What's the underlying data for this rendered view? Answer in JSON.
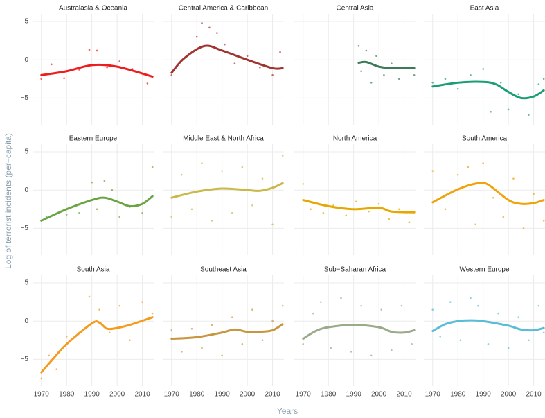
{
  "y_label": "Log of terrorist incidents (per−capita)",
  "x_label": "Years",
  "chart_data": [
    {
      "type": "scatter",
      "title": "Australasia & Oceania",
      "color": "#ee1c1c",
      "xlim": [
        1966.5,
        2014.5
      ],
      "ylim": [
        -8.5,
        6
      ],
      "xticks": [
        1970,
        1980,
        1990,
        2000,
        2010
      ],
      "yticks": [
        5,
        0,
        {
          "value": -5,
          "label": "−5"
        }
      ],
      "grid": true,
      "x": [
        1970,
        1974,
        1979,
        1985,
        1989,
        1992,
        1996,
        2001,
        2006,
        2012
      ],
      "y": [
        -2.5,
        -0.6,
        -2.4,
        -1.3,
        1.3,
        1.2,
        -1.0,
        -0.2,
        -1.2,
        -3.1
      ],
      "smooth_x": [
        1970,
        1980,
        1990,
        2000,
        2014
      ],
      "smooth_values": [
        -2,
        -1.5,
        -0.7,
        -0.9,
        -2.2
      ]
    },
    {
      "type": "scatter",
      "title": "Central America & Caribbean",
      "color": "#a0342f",
      "xlim": [
        1966.5,
        2014.5
      ],
      "ylim": [
        -8.5,
        6
      ],
      "xticks": [
        1970,
        1980,
        1990,
        2000,
        2010
      ],
      "yticks": [
        5,
        0,
        {
          "value": -5,
          "label": "−5"
        }
      ],
      "grid": true,
      "x": [
        1970,
        1976,
        1980,
        1982,
        1985,
        1988,
        1991,
        1995,
        2000,
        2005,
        2010,
        2013
      ],
      "y": [
        -2.0,
        0.5,
        3.0,
        4.8,
        4.2,
        3.5,
        2.0,
        -0.5,
        0.5,
        -1.0,
        -2.0,
        1.0
      ],
      "smooth_x": [
        1970,
        1975,
        1983,
        1990,
        2000,
        2010,
        2014
      ],
      "smooth_values": [
        -1.7,
        0.2,
        1.8,
        1.2,
        0,
        -1.1,
        -1.1
      ]
    },
    {
      "type": "scatter",
      "title": "Central Asia",
      "color": "#3d7a5a",
      "xlim": [
        1966.5,
        2014.5
      ],
      "ylim": [
        -8.5,
        6
      ],
      "xticks": [
        1970,
        1980,
        1990,
        2000,
        2010
      ],
      "yticks": [
        5,
        0,
        {
          "value": -5,
          "label": "−5"
        }
      ],
      "grid": true,
      "x": [
        1992,
        1993,
        1995,
        1997,
        1999,
        2002,
        2005,
        2008,
        2011,
        2014
      ],
      "y": [
        1.8,
        -1.5,
        1.2,
        -3.0,
        0.5,
        -2.0,
        -0.5,
        -2.5,
        -1.0,
        -2.0
      ],
      "smooth_x": [
        1992,
        1995,
        2000,
        2005,
        2014
      ],
      "smooth_values": [
        -0.4,
        -0.3,
        -0.9,
        -1.1,
        -1.1
      ]
    },
    {
      "type": "scatter",
      "title": "East Asia",
      "color": "#1b9e77",
      "xlim": [
        1966.5,
        2014.5
      ],
      "ylim": [
        -8.5,
        6
      ],
      "xticks": [
        1970,
        1980,
        1990,
        2000,
        2010
      ],
      "yticks": [
        5,
        0,
        {
          "value": -5,
          "label": "−5"
        }
      ],
      "grid": true,
      "x": [
        1970,
        1975,
        1980,
        1985,
        1990,
        1993,
        1997,
        2000,
        2004,
        2008,
        2012,
        2014
      ],
      "y": [
        -3.0,
        -2.5,
        -3.8,
        -2.0,
        -1.2,
        -6.8,
        -3.0,
        -6.5,
        -4.5,
        -7.2,
        -3.2,
        -2.5
      ],
      "smooth_x": [
        1970,
        1980,
        1990,
        1995,
        2000,
        2005,
        2010,
        2014
      ],
      "smooth_values": [
        -3.5,
        -3,
        -2.9,
        -3.2,
        -4.2,
        -5,
        -4.8,
        -4
      ]
    },
    {
      "type": "scatter",
      "title": "Eastern Europe",
      "color": "#6ba543",
      "xlim": [
        1966.5,
        2014.5
      ],
      "ylim": [
        -8.5,
        6
      ],
      "xticks": [
        1970,
        1980,
        1990,
        2000,
        2010
      ],
      "yticks": [
        5,
        0,
        {
          "value": -5,
          "label": "−5"
        }
      ],
      "grid": true,
      "x": [
        1972,
        1980,
        1985,
        1990,
        1992,
        1995,
        1998,
        2001,
        2005,
        2010,
        2014
      ],
      "y": [
        -3.5,
        -3.2,
        -3.0,
        1.0,
        -2.5,
        1.2,
        0.0,
        -3.5,
        -2.2,
        -3.0,
        3.0
      ],
      "smooth_x": [
        1970,
        1980,
        1990,
        1995,
        2000,
        2005,
        2010,
        2014
      ],
      "smooth_values": [
        -4,
        -2.5,
        -1.3,
        -1,
        -1.5,
        -2.1,
        -1.8,
        -0.8
      ]
    },
    {
      "type": "scatter",
      "title": "Middle East & North Africa",
      "color": "#c9b94a",
      "xlim": [
        1966.5,
        2014.5
      ],
      "ylim": [
        -8.5,
        6
      ],
      "xticks": [
        1970,
        1980,
        1990,
        2000,
        2010
      ],
      "yticks": [
        5,
        0,
        {
          "value": -5,
          "label": "−5"
        }
      ],
      "grid": true,
      "x": [
        1970,
        1974,
        1978,
        1982,
        1986,
        1990,
        1994,
        1998,
        2002,
        2006,
        2010,
        2014
      ],
      "y": [
        -3.5,
        2.0,
        -2.5,
        3.5,
        -4.0,
        2.5,
        -3.0,
        3.0,
        -2.0,
        1.5,
        -4.5,
        4.5
      ],
      "smooth_x": [
        1970,
        1980,
        1990,
        2000,
        2005,
        2010,
        2014
      ],
      "smooth_values": [
        -1,
        -0.2,
        0.2,
        0,
        -0.1,
        0.3,
        0.9
      ]
    },
    {
      "type": "scatter",
      "title": "North America",
      "color": "#e6a800",
      "xlim": [
        1966.5,
        2014.5
      ],
      "ylim": [
        -8.5,
        6
      ],
      "xticks": [
        1970,
        1980,
        1990,
        2000,
        2010
      ],
      "yticks": [
        5,
        0,
        {
          "value": -5,
          "label": "−5"
        }
      ],
      "grid": true,
      "x": [
        1970,
        1973,
        1978,
        1982,
        1987,
        1991,
        1996,
        2000,
        2004,
        2008,
        2012
      ],
      "y": [
        0.8,
        -2.5,
        -3.0,
        -2.0,
        -3.3,
        -1.5,
        -2.8,
        -1.8,
        -3.8,
        -2.5,
        -4.2
      ],
      "smooth_x": [
        1970,
        1980,
        1990,
        2000,
        2005,
        2014
      ],
      "smooth_values": [
        -1.3,
        -2.1,
        -2.5,
        -2.3,
        -2.8,
        -2.9
      ]
    },
    {
      "type": "scatter",
      "title": "South America",
      "color": "#f0a30a",
      "xlim": [
        1966.5,
        2014.5
      ],
      "ylim": [
        -8.5,
        6
      ],
      "xticks": [
        1970,
        1980,
        1990,
        2000,
        2010
      ],
      "yticks": [
        5,
        0,
        {
          "value": -5,
          "label": "−5"
        }
      ],
      "grid": true,
      "x": [
        1970,
        1975,
        1980,
        1984,
        1987,
        1990,
        1994,
        1998,
        2002,
        2006,
        2010,
        2014
      ],
      "y": [
        2.5,
        -2.5,
        2.0,
        3.0,
        -4.5,
        3.5,
        -1.0,
        -3.5,
        1.5,
        -5.0,
        -0.5,
        -4.0
      ],
      "smooth_x": [
        1970,
        1980,
        1988,
        1992,
        2000,
        2005,
        2010,
        2014
      ],
      "smooth_values": [
        -1.6,
        0.1,
        0.9,
        0.7,
        -1.3,
        -1.8,
        -1.7,
        -1.3
      ]
    },
    {
      "type": "scatter",
      "title": "South Asia",
      "color": "#f59a1c",
      "xlim": [
        1966.5,
        2014.5
      ],
      "ylim": [
        -8.5,
        6
      ],
      "xticks": [
        1970,
        1980,
        1990,
        2000,
        2010
      ],
      "yticks": [
        5,
        0,
        {
          "value": -5,
          "label": "−5"
        }
      ],
      "grid": true,
      "x": [
        1970,
        1973,
        1976,
        1980,
        1985,
        1989,
        1993,
        1997,
        2001,
        2005,
        2010,
        2014
      ],
      "y": [
        -7.5,
        -4.5,
        -6.3,
        -2.0,
        -1.5,
        3.2,
        1.5,
        -1.5,
        2.0,
        -2.5,
        2.5,
        1.0
      ],
      "smooth_x": [
        1970,
        1975,
        1980,
        1990,
        1993,
        1996,
        2000,
        2005,
        2014
      ],
      "smooth_values": [
        -6.7,
        -4.8,
        -3,
        -0.3,
        -0.2,
        -1,
        -0.9,
        -0.5,
        0.5
      ]
    },
    {
      "type": "scatter",
      "title": "Southeast Asia",
      "color": "#c8963e",
      "xlim": [
        1966.5,
        2014.5
      ],
      "ylim": [
        -8.5,
        6
      ],
      "xticks": [
        1970,
        1980,
        1990,
        2000,
        2010
      ],
      "yticks": [
        5,
        0,
        {
          "value": -5,
          "label": "−5"
        }
      ],
      "grid": true,
      "x": [
        1970,
        1974,
        1978,
        1982,
        1986,
        1990,
        1994,
        1998,
        2002,
        2006,
        2010,
        2014
      ],
      "y": [
        -1.2,
        -4.0,
        -1.0,
        -3.5,
        -0.5,
        -4.5,
        0.5,
        -3.0,
        1.5,
        -2.5,
        0.0,
        2.0
      ],
      "smooth_x": [
        1970,
        1980,
        1990,
        1995,
        2000,
        2005,
        2010,
        2014
      ],
      "smooth_values": [
        -2.3,
        -2.1,
        -1.5,
        -1.1,
        -1.4,
        -1.4,
        -1.2,
        -0.4
      ]
    },
    {
      "type": "scatter",
      "title": "Sub−Saharan Africa",
      "color": "#9aab8a",
      "xlim": [
        1966.5,
        2014.5
      ],
      "ylim": [
        -8.5,
        6
      ],
      "xticks": [
        1970,
        1980,
        1990,
        2000,
        2010
      ],
      "yticks": [
        5,
        0,
        {
          "value": -5,
          "label": "−5"
        }
      ],
      "grid": true,
      "x": [
        1970,
        1974,
        1977,
        1981,
        1985,
        1989,
        1993,
        1997,
        2001,
        2005,
        2009,
        2013
      ],
      "y": [
        -3.0,
        1.0,
        2.5,
        -3.5,
        3.0,
        -4.0,
        2.0,
        -4.5,
        1.5,
        -3.8,
        2.0,
        -3.0
      ],
      "smooth_x": [
        1970,
        1975,
        1980,
        1990,
        2000,
        2005,
        2010,
        2014
      ],
      "smooth_values": [
        -2.3,
        -1.3,
        -0.8,
        -0.5,
        -0.8,
        -1.4,
        -1.5,
        -1.2
      ]
    },
    {
      "type": "scatter",
      "title": "Western Europe",
      "color": "#5bbcd6",
      "xlim": [
        1966.5,
        2014.5
      ],
      "ylim": [
        -8.5,
        6
      ],
      "xticks": [
        1970,
        1980,
        1990,
        2000,
        2010
      ],
      "yticks": [
        5,
        0,
        {
          "value": -5,
          "label": "−5"
        }
      ],
      "grid": true,
      "x": [
        1970,
        1973,
        1977,
        1981,
        1985,
        1988,
        1992,
        1996,
        2000,
        2004,
        2008,
        2012,
        2014
      ],
      "y": [
        1.5,
        -2.0,
        2.5,
        -2.5,
        3.0,
        2.0,
        -3.0,
        1.0,
        -3.5,
        0.5,
        -2.5,
        2.0,
        -1.5
      ],
      "smooth_x": [
        1970,
        1975,
        1980,
        1985,
        1990,
        2000,
        2005,
        2010,
        2014
      ],
      "smooth_values": [
        -1.3,
        -0.4,
        0,
        0.1,
        0,
        -0.6,
        -1.1,
        -1.2,
        -0.9
      ]
    }
  ]
}
